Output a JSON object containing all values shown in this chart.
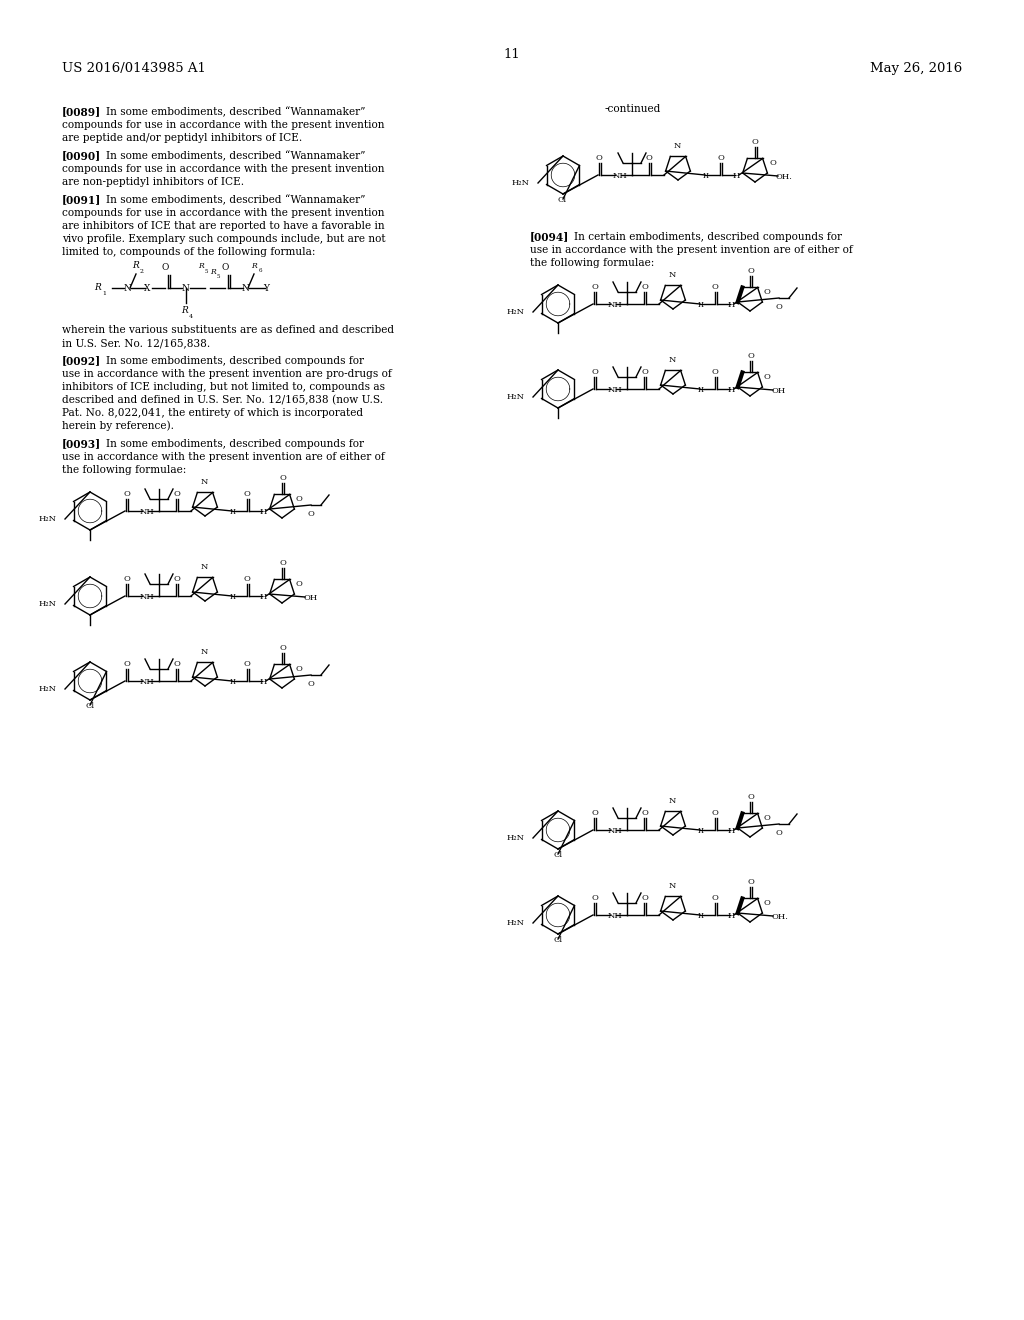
{
  "bg_color": "#ffffff",
  "header_left": "US 2016/0143985 A1",
  "header_right": "May 26, 2016",
  "page_number": "11",
  "continued_label": "-continued",
  "para_0089_tag": "[0089]",
  "para_0089_lines": [
    "In some embodiments, described “Wannamaker”",
    "compounds for use in accordance with the present invention",
    "are peptide and/or peptidyl inhibitors of ICE."
  ],
  "para_0090_tag": "[0090]",
  "para_0090_lines": [
    "In some embodiments, described “Wannamaker”",
    "compounds for use in accordance with the present invention",
    "are non-peptidyl inhibitors of ICE."
  ],
  "para_0091_tag": "[0091]",
  "para_0091_lines": [
    "In some embodiments, described “Wannamaker”",
    "compounds for use in accordance with the present invention",
    "are inhibitors of ICE that are reported to have a favorable in",
    "vivo profile. Exemplary such compounds include, but are not",
    "limited to, compounds of the following formula:"
  ],
  "wherein_lines": [
    "wherein the various substituents are as defined and described",
    "in U.S. Ser. No. 12/165,838."
  ],
  "para_0092_tag": "[0092]",
  "para_0092_lines": [
    "In some embodiments, described compounds for",
    "use in accordance with the present invention are pro-drugs of",
    "inhibitors of ICE including, but not limited to, compounds as",
    "described and defined in U.S. Ser. No. 12/165,838 (now U.S.",
    "Pat. No. 8,022,041, the entirety of which is incorporated",
    "herein by reference)."
  ],
  "para_0093_tag": "[0093]",
  "para_0093_lines": [
    "In some embodiments, described compounds for",
    "use in accordance with the present invention are of either of",
    "the following formulae:"
  ],
  "para_0094_tag": "[0094]",
  "para_0094_lines": [
    "In certain embodiments, described compounds for",
    "use in accordance with the present invention are of either of",
    "the following formulae:"
  ]
}
